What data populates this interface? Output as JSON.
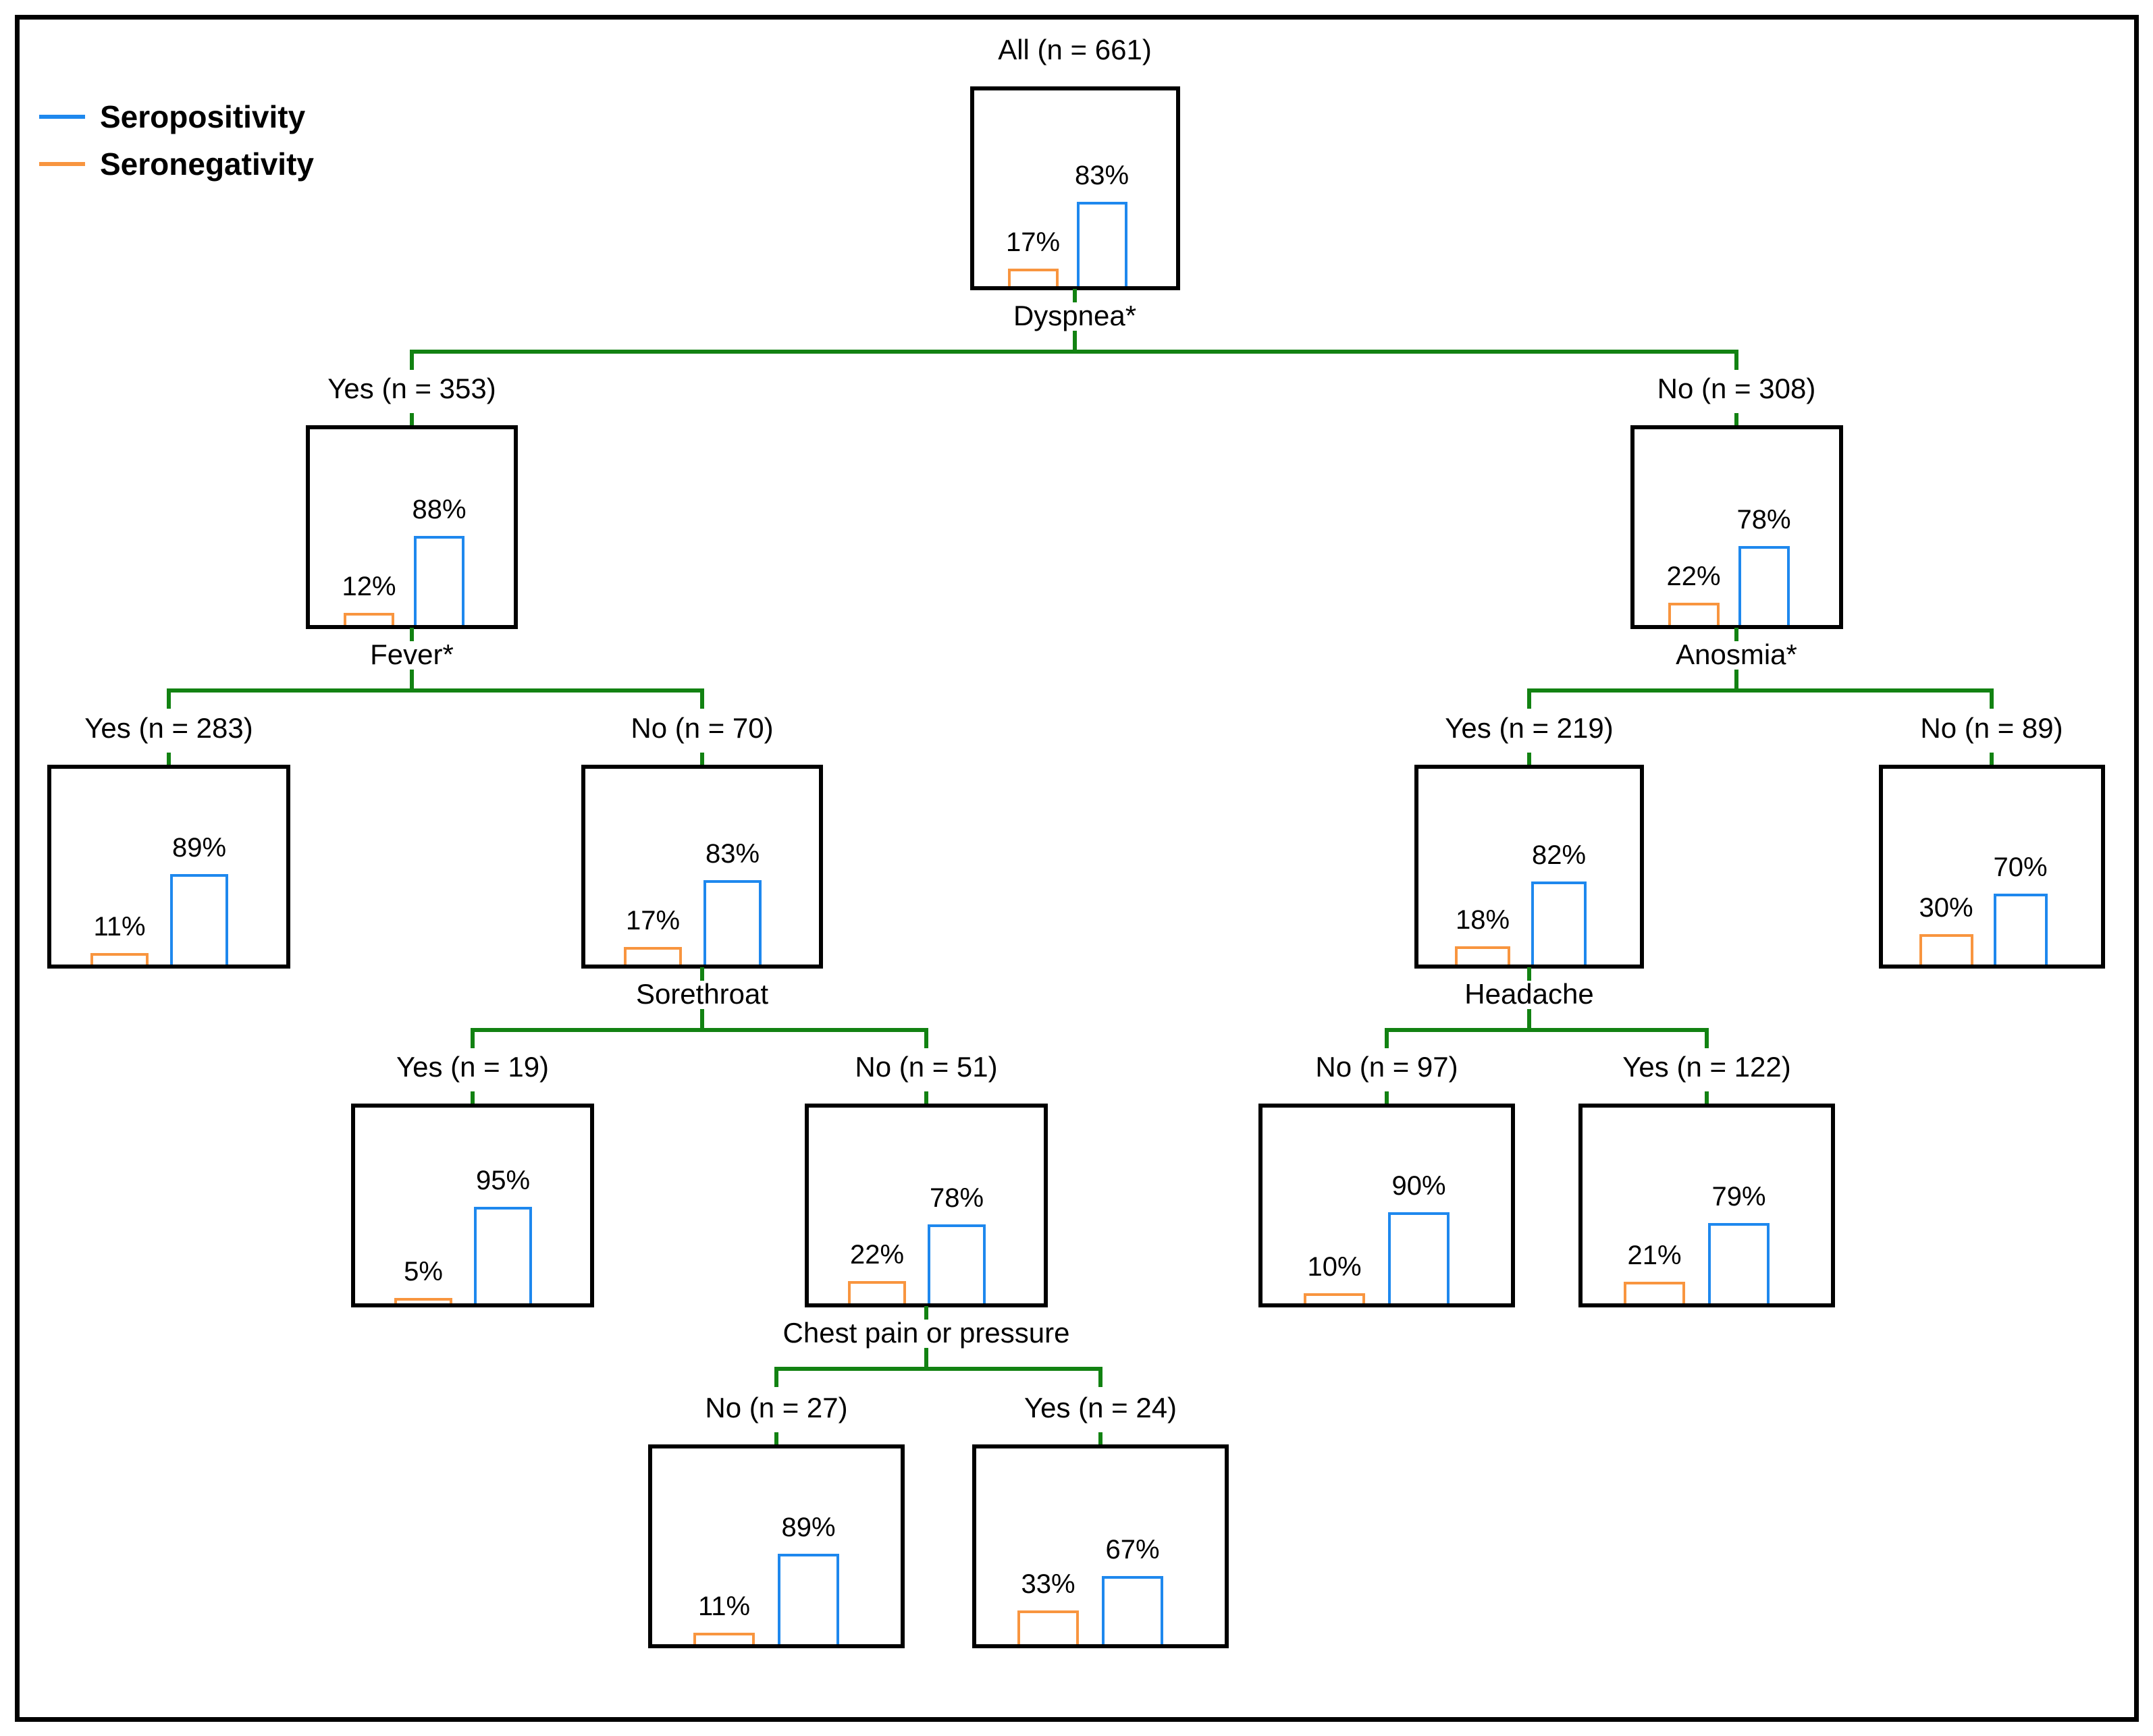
{
  "figure": {
    "legend": [
      {
        "label": "Seropositivity",
        "color": "#1E88EE"
      },
      {
        "label": "Seronegativity",
        "color": "#F8953F"
      }
    ],
    "colors": {
      "seropositivity": "#1E88EE",
      "seronegativity": "#F8953F",
      "connector": "#128212",
      "box_border": "#000000",
      "text": "#000000",
      "background": "#FFFFFF"
    }
  },
  "chart_data": {
    "type": "bar",
    "variant": "classification-tree-with-node-barplots",
    "title": "",
    "legend_entries": [
      "Seropositivity",
      "Seronegativity"
    ],
    "bar_categories_per_node": [
      "Seronegativity",
      "Seropositivity"
    ],
    "ylim_pct": [
      0,
      100
    ],
    "nodes": [
      {
        "id": "all",
        "title": "All (n = 661)",
        "n": 661,
        "seronegativity_pct": 17,
        "seropositivity_pct": 83,
        "neg_label": "17%",
        "pos_label": "83%",
        "split": "Dyspnea*",
        "children": [
          "dyspnea-yes",
          "dyspnea-no"
        ]
      },
      {
        "id": "dyspnea-yes",
        "title": "Yes (n = 353)",
        "n": 353,
        "seronegativity_pct": 12,
        "seropositivity_pct": 88,
        "neg_label": "12%",
        "pos_label": "88%",
        "split": "Fever*",
        "children": [
          "fever-yes",
          "fever-no"
        ]
      },
      {
        "id": "dyspnea-no",
        "title": "No (n = 308)",
        "n": 308,
        "seronegativity_pct": 22,
        "seropositivity_pct": 78,
        "neg_label": "22%",
        "pos_label": "78%",
        "split": "Anosmia*",
        "children": [
          "anosmia-yes",
          "anosmia-no"
        ]
      },
      {
        "id": "fever-yes",
        "title": "Yes (n = 283)",
        "n": 283,
        "seronegativity_pct": 11,
        "seropositivity_pct": 89,
        "neg_label": "11%",
        "pos_label": "89%",
        "split": null,
        "children": []
      },
      {
        "id": "fever-no",
        "title": "No (n = 70)",
        "n": 70,
        "seronegativity_pct": 17,
        "seropositivity_pct": 83,
        "neg_label": "17%",
        "pos_label": "83%",
        "split": "Sorethroat",
        "children": [
          "sorethroat-yes",
          "sorethroat-no"
        ]
      },
      {
        "id": "anosmia-yes",
        "title": "Yes (n = 219)",
        "n": 219,
        "seronegativity_pct": 18,
        "seropositivity_pct": 82,
        "neg_label": "18%",
        "pos_label": "82%",
        "split": "Headache",
        "children": [
          "headache-no",
          "headache-yes"
        ]
      },
      {
        "id": "anosmia-no",
        "title": "No (n = 89)",
        "n": 89,
        "seronegativity_pct": 30,
        "seropositivity_pct": 70,
        "neg_label": "30%",
        "pos_label": "70%",
        "split": null,
        "children": []
      },
      {
        "id": "sorethroat-yes",
        "title": "Yes (n = 19)",
        "n": 19,
        "seronegativity_pct": 5,
        "seropositivity_pct": 95,
        "neg_label": "5%",
        "pos_label": "95%",
        "split": null,
        "children": []
      },
      {
        "id": "sorethroat-no",
        "title": "No (n = 51)",
        "n": 51,
        "seronegativity_pct": 22,
        "seropositivity_pct": 78,
        "neg_label": "22%",
        "pos_label": "78%",
        "split": "Chest pain or pressure",
        "children": [
          "chest-no",
          "chest-yes"
        ]
      },
      {
        "id": "headache-no",
        "title": "No (n = 97)",
        "n": 97,
        "seronegativity_pct": 10,
        "seropositivity_pct": 90,
        "neg_label": "10%",
        "pos_label": "90%",
        "split": null,
        "children": []
      },
      {
        "id": "headache-yes",
        "title": "Yes (n = 122)",
        "n": 122,
        "seronegativity_pct": 21,
        "seropositivity_pct": 79,
        "neg_label": "21%",
        "pos_label": "79%",
        "split": null,
        "children": []
      },
      {
        "id": "chest-no",
        "title": "No (n = 27)",
        "n": 27,
        "seronegativity_pct": 11,
        "seropositivity_pct": 89,
        "neg_label": "11%",
        "pos_label": "89%",
        "split": null,
        "children": []
      },
      {
        "id": "chest-yes",
        "title": "Yes (n = 24)",
        "n": 24,
        "seronegativity_pct": 33,
        "seropositivity_pct": 67,
        "neg_label": "33%",
        "pos_label": "67%",
        "split": null,
        "children": []
      }
    ]
  }
}
